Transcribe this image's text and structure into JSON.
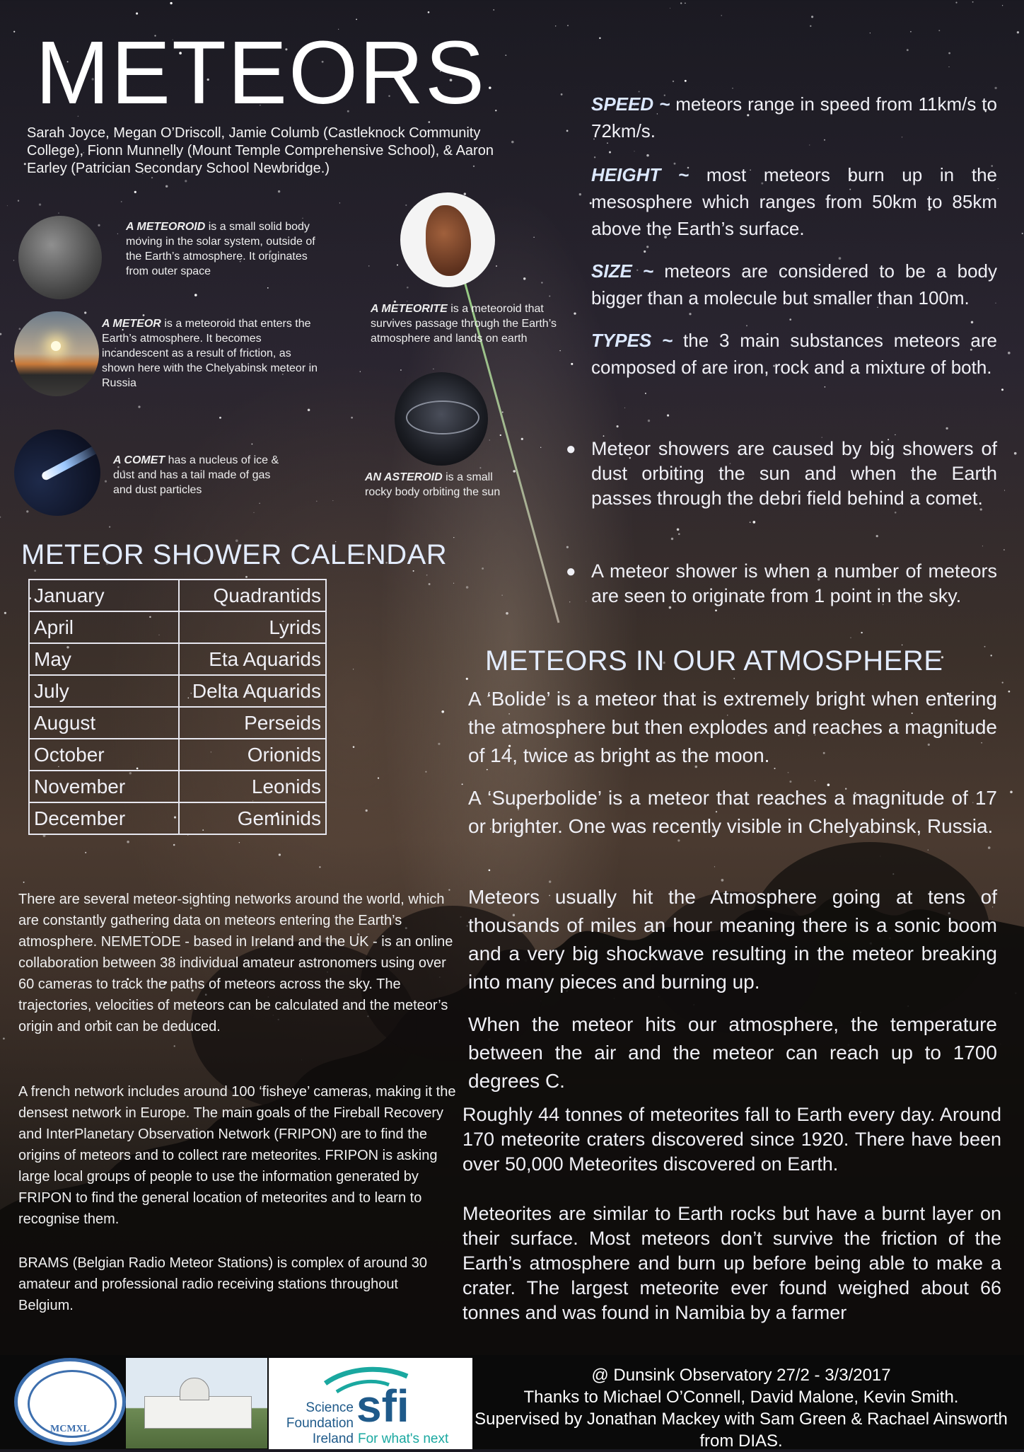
{
  "poster": {
    "title": "METEORS",
    "authors": "Sarah Joyce, Megan O’Driscoll, Jamie Columb (Castleknock Community College), Fionn Munnelly (Mount Temple Comprehensive School), & Aaron Earley (Patrician Secondary School Newbridge.)"
  },
  "captions": {
    "meteoroid": {
      "term": "A METEOROID",
      "text": "is a small solid body moving in the solar system, outside of the Earth’s atmosphere. It originates from outer space"
    },
    "meteor": {
      "term": "A METEOR",
      "text": "is a meteoroid that enters the Earth’s atmosphere. It becomes incandescent as a result of friction, as shown here with the Chelyabinsk meteor in Russia"
    },
    "comet": {
      "term": "A COMET",
      "text": "has a nucleus of ice & dust and has a tail made of gas and dust particles"
    },
    "meteorite": {
      "term": "A METEORITE",
      "text": "is a meteoroid that survives passage through the Earth’s atmosphere and lands on earth"
    },
    "asteroid": {
      "term": "AN ASTEROID",
      "text": "is a small rocky body orbiting the sun"
    }
  },
  "facts": [
    {
      "key": "SPEED ~",
      "text": "meteors range in speed from 11km/s to 72km/s."
    },
    {
      "key": "HEIGHT ~",
      "text": "most meteors burn up in the mesosphere which ranges from 50km to 85km above the Earth’s surface."
    },
    {
      "key": "SIZE ~",
      "text": "meteors are considered to be a body bigger than a molecule but smaller than 100m."
    },
    {
      "key": "TYPES ~",
      "text": "the 3 main substances meteors are composed of are iron, rock and a mixture of both."
    }
  ],
  "bullets": [
    "Meteor showers are caused by big showers of dust orbiting the sun and when the Earth passes through the debri field behind a comet.",
    "A meteor shower is when a number of meteors are seen to originate from 1 point in the sky."
  ],
  "calendar": {
    "title": "METEOR SHOWER CALENDAR",
    "rows": [
      {
        "month": "January",
        "shower": "Quadrantids"
      },
      {
        "month": "April",
        "shower": "Lyrids"
      },
      {
        "month": "May",
        "shower": "Eta Aquarids"
      },
      {
        "month": "July",
        "shower": "Delta Aquarids"
      },
      {
        "month": "August",
        "shower": "Perseids"
      },
      {
        "month": "October",
        "shower": "Orionids"
      },
      {
        "month": "November",
        "shower": "Leonids"
      },
      {
        "month": "December",
        "shower": "Geminids"
      }
    ]
  },
  "atmosphere": {
    "title": "METEORS IN OUR ATMOSPHERE",
    "p1": "A ‘Bolide’ is a meteor that is extremely bright when entering the atmosphere but then explodes and reaches a magnitude of 14, twice as bright as the moon.",
    "p2": "A ‘Superbolide’ is a meteor that reaches a magnitude of 17 or brighter. One was recently visible in Chelyabinsk, Russia.",
    "p3": "Meteors usually hit the Atmosphere going at tens of thousands of miles an hour meaning there is a sonic boom and a very big shockwave resulting in the meteor breaking into many pieces and burning up.",
    "p4": "When the meteor hits our atmosphere, the temperature between the air and the meteor can reach up to 1700 degrees C.",
    "p5": "Roughly 44 tonnes of meteorites fall to Earth every day. Around 170 meteorite craters discovered since 1920. There have been over 50,000 Meteorites discovered on Earth.",
    "p6": "Meteorites are similar to Earth rocks but have a burnt layer on their surface. Most meteors don’t survive the friction of the Earth’s atmosphere and burn up before being able to make a crater. The largest meteorite ever found weighed about 66 tonnes and was found in Namibia by a farmer"
  },
  "networks": {
    "p1": "There are several meteor-sighting networks around the world, which are constantly gathering data on meteors entering the Earth’s atmosphere. NEMETODE - based in Ireland and the UK - is an online collaboration between 38 individual amateur astronomers using over 60 cameras to track the paths of meteors across the sky. The trajectories, velocities of meteors can be calculated and the meteor’s origin and orbit can be deduced.",
    "p2": "A french network includes around 100 ‘fisheye’ cameras, making it the densest network in Europe. The main goals of the Fireball Recovery and InterPlanetary Observation Network (FRIPON) are to find the origins of meteors and to collect rare meteorites. FRIPON is asking large local groups of people to use the information generated by FRIPON to find the general location of meteorites and to learn to recognise them.",
    "p3": "BRAMS (Belgian Radio Meteor Stations) is complex of around 30 amateur and professional radio receiving stations throughout Belgium."
  },
  "footer": {
    "line1": "@ Dunsink Observatory 27/2 - 3/3/2017",
    "line2": "Thanks to Michael O’Connell, David Malone, Kevin Smith.",
    "line3": "Supervised by Jonathan Mackey with Sam Green & Rachael Ainsworth  from DIAS.",
    "seal_text": "MCMXL",
    "sfi_words": [
      "Science",
      "Foundation",
      "Ireland"
    ],
    "sfi_mark": "sfi",
    "sfi_tagline": "For what's next"
  }
}
